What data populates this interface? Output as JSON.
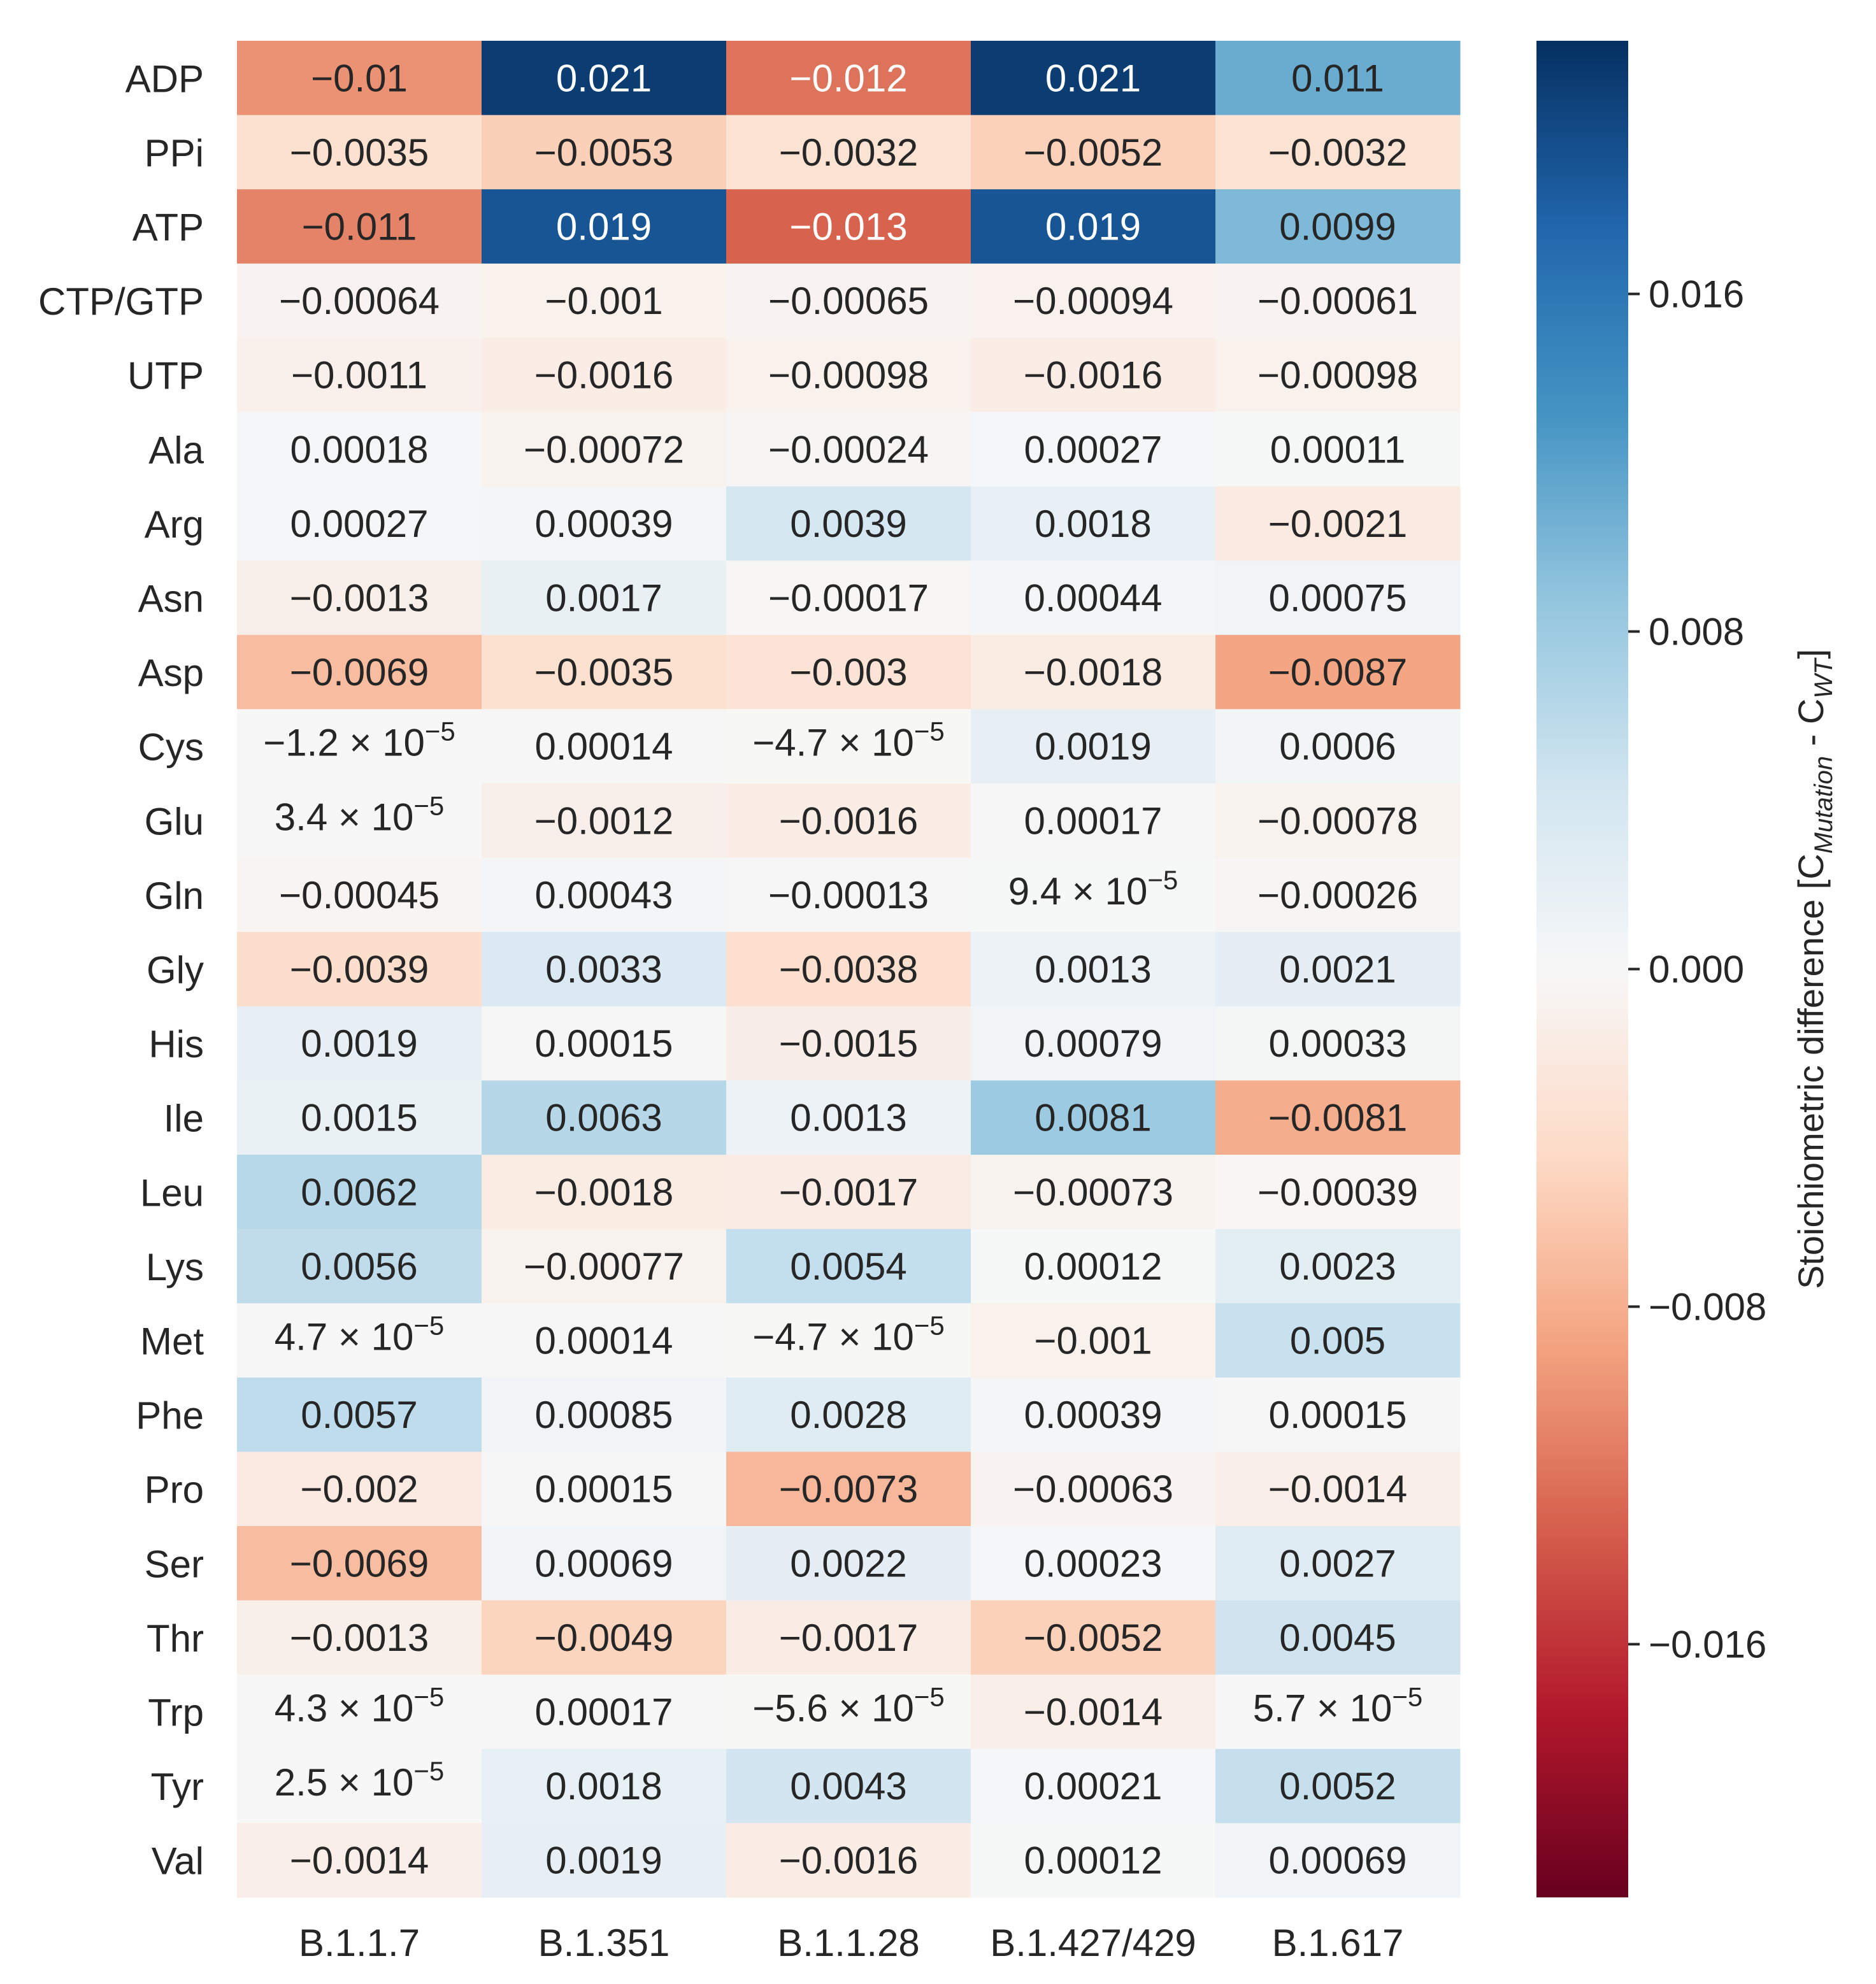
{
  "chart_data": {
    "type": "heatmap",
    "columns": [
      "B.1.1.7",
      "B.1.351",
      "B.1.1.28",
      "B.1.427/429",
      "B.1.617"
    ],
    "rows": [
      "ADP",
      "PPi",
      "ATP",
      "CTP/GTP",
      "UTP",
      "Ala",
      "Arg",
      "Asn",
      "Asp",
      "Cys",
      "Glu",
      "Gln",
      "Gly",
      "His",
      "Ile",
      "Leu",
      "Lys",
      "Met",
      "Phe",
      "Pro",
      "Ser",
      "Thr",
      "Trp",
      "Tyr",
      "Val"
    ],
    "values": [
      [
        -0.01,
        0.021,
        -0.012,
        0.021,
        0.011
      ],
      [
        -0.0035,
        -0.0053,
        -0.0032,
        -0.0052,
        -0.0032
      ],
      [
        -0.011,
        0.019,
        -0.013,
        0.019,
        0.0099
      ],
      [
        -0.00064,
        -0.001,
        -0.00065,
        -0.00094,
        -0.00061
      ],
      [
        -0.0011,
        -0.0016,
        -0.00098,
        -0.0016,
        -0.00098
      ],
      [
        0.00018,
        -0.00072,
        -0.00024,
        0.00027,
        0.00011
      ],
      [
        0.00027,
        0.00039,
        0.0039,
        0.0018,
        -0.0021
      ],
      [
        -0.0013,
        0.0017,
        -0.00017,
        0.00044,
        0.00075
      ],
      [
        -0.0069,
        -0.0035,
        -0.003,
        -0.0018,
        -0.0087
      ],
      [
        -1.2e-05,
        0.00014,
        -4.7e-05,
        0.0019,
        0.0006
      ],
      [
        3.4e-05,
        -0.0012,
        -0.0016,
        0.00017,
        -0.00078
      ],
      [
        -0.00045,
        0.00043,
        -0.00013,
        9.4e-05,
        -0.00026
      ],
      [
        -0.0039,
        0.0033,
        -0.0038,
        0.0013,
        0.0021
      ],
      [
        0.0019,
        0.00015,
        -0.0015,
        0.00079,
        0.00033
      ],
      [
        0.0015,
        0.0063,
        0.0013,
        0.0081,
        -0.0081
      ],
      [
        0.0062,
        -0.0018,
        -0.0017,
        -0.00073,
        -0.00039
      ],
      [
        0.0056,
        -0.00077,
        0.0054,
        0.00012,
        0.0023
      ],
      [
        4.7e-05,
        0.00014,
        -4.7e-05,
        -0.001,
        0.005
      ],
      [
        0.0057,
        0.00085,
        0.0028,
        0.00039,
        0.00015
      ],
      [
        -0.002,
        0.00015,
        -0.0073,
        -0.00063,
        -0.0014
      ],
      [
        -0.0069,
        0.00069,
        0.0022,
        0.00023,
        0.0027
      ],
      [
        -0.0013,
        -0.0049,
        -0.0017,
        -0.0052,
        0.0045
      ],
      [
        4.3e-05,
        0.00017,
        -5.6e-05,
        -0.0014,
        5.7e-05
      ],
      [
        2.5e-05,
        0.0018,
        0.0043,
        0.00021,
        0.0052
      ],
      [
        -0.0014,
        0.0019,
        -0.0016,
        0.00012,
        0.00069
      ]
    ],
    "labels": [
      [
        "−0.01",
        "0.021",
        "−0.012",
        "0.021",
        "0.011"
      ],
      [
        "−0.0035",
        "−0.0053",
        "−0.0032",
        "−0.0052",
        "−0.0032"
      ],
      [
        "−0.011",
        "0.019",
        "−0.013",
        "0.019",
        "0.0099"
      ],
      [
        "−0.00064",
        "−0.001",
        "−0.00065",
        "−0.00094",
        "−0.00061"
      ],
      [
        "−0.0011",
        "−0.0016",
        "−0.00098",
        "−0.0016",
        "−0.00098"
      ],
      [
        "0.00018",
        "−0.00072",
        "−0.00024",
        "0.00027",
        "0.00011"
      ],
      [
        "0.00027",
        "0.00039",
        "0.0039",
        "0.0018",
        "−0.0021"
      ],
      [
        "−0.0013",
        "0.0017",
        "−0.00017",
        "0.00044",
        "0.00075"
      ],
      [
        "−0.0069",
        "−0.0035",
        "−0.003",
        "−0.0018",
        "−0.0087"
      ],
      [
        "−1.2 × 10|−5",
        "0.00014",
        "−4.7 × 10|−5",
        "0.0019",
        "0.0006"
      ],
      [
        "3.4 × 10|−5",
        "−0.0012",
        "−0.0016",
        "0.00017",
        "−0.00078"
      ],
      [
        "−0.00045",
        "0.00043",
        "−0.00013",
        "9.4 × 10|−5",
        "−0.00026"
      ],
      [
        "−0.0039",
        "0.0033",
        "−0.0038",
        "0.0013",
        "0.0021"
      ],
      [
        "0.0019",
        "0.00015",
        "−0.0015",
        "0.00079",
        "0.00033"
      ],
      [
        "0.0015",
        "0.0063",
        "0.0013",
        "0.0081",
        "−0.0081"
      ],
      [
        "0.0062",
        "−0.0018",
        "−0.0017",
        "−0.00073",
        "−0.00039"
      ],
      [
        "0.0056",
        "−0.00077",
        "0.0054",
        "0.00012",
        "0.0023"
      ],
      [
        "4.7 × 10|−5",
        "0.00014",
        "−4.7 × 10|−5",
        "−0.001",
        "0.005"
      ],
      [
        "0.0057",
        "0.00085",
        "0.0028",
        "0.00039",
        "0.00015"
      ],
      [
        "−0.002",
        "0.00015",
        "−0.0073",
        "−0.00063",
        "−0.0014"
      ],
      [
        "−0.0069",
        "0.00069",
        "0.0022",
        "0.00023",
        "0.0027"
      ],
      [
        "−0.0013",
        "−0.0049",
        "−0.0017",
        "−0.0052",
        "0.0045"
      ],
      [
        "4.3 × 10|−5",
        "0.00017",
        "−5.6 × 10|−5",
        "−0.0014",
        "5.7 × 10|−5"
      ],
      [
        "2.5 × 10|−5",
        "0.0018",
        "0.0043",
        "0.00021",
        "0.0052"
      ],
      [
        "−0.0014",
        "0.0019",
        "−0.0016",
        "0.00012",
        "0.00069"
      ]
    ],
    "colorbar": {
      "vmin": -0.022,
      "vmax": 0.022,
      "colormap": "RdBu",
      "ticks": [
        0.016,
        0.008,
        0.0,
        -0.008,
        -0.016
      ],
      "tick_labels": [
        "0.016",
        "0.008",
        "0.000",
        "−0.008",
        "−0.016"
      ],
      "label_main": "Stoichiometric difference [C",
      "label_sub1": "Mutation",
      "label_mid": " - C",
      "label_sub2": "WT",
      "label_end": "]"
    }
  }
}
